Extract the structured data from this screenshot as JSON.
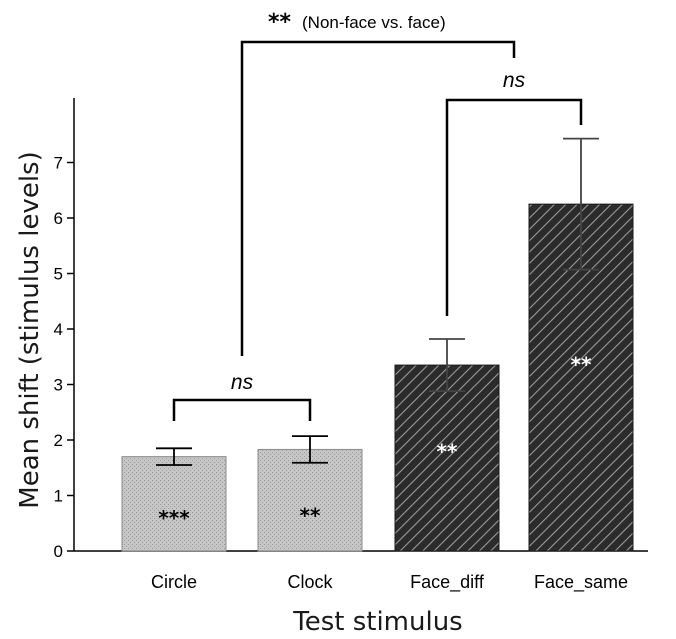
{
  "chart_data": {
    "type": "bar",
    "categories": [
      "Circle",
      "Clock",
      "Face_diff",
      "Face_same"
    ],
    "values": [
      1.7,
      1.83,
      3.35,
      6.25
    ],
    "errors": [
      0.15,
      0.24,
      0.47,
      1.18
    ],
    "bar_styles": [
      "light-gray-dotted",
      "light-gray-dotted",
      "dark-hatched",
      "dark-hatched"
    ],
    "bar_significance": [
      "***",
      "**",
      "**",
      "**"
    ],
    "xlabel": "Test stimulus",
    "ylabel": "Mean shift (stimulus levels)",
    "ylim": [
      0,
      8
    ],
    "yticks": [
      0,
      1,
      2,
      3,
      4,
      5,
      6,
      7
    ],
    "grid": false,
    "comparisons": [
      {
        "pair": [
          "Circle",
          "Clock"
        ],
        "label": "ns"
      },
      {
        "pair": [
          "Face_diff",
          "Face_same"
        ],
        "label": "ns"
      },
      {
        "pair": [
          "Non-face",
          "face"
        ],
        "stars": "**",
        "label": "(Non-face vs. face)"
      }
    ],
    "colors": {
      "light_fill": "#c4c4c4",
      "dark_fill": "#2a2a2a",
      "hatch": "#9a9a9a",
      "light_star": "#000000",
      "dark_star": "#ffffff"
    }
  }
}
